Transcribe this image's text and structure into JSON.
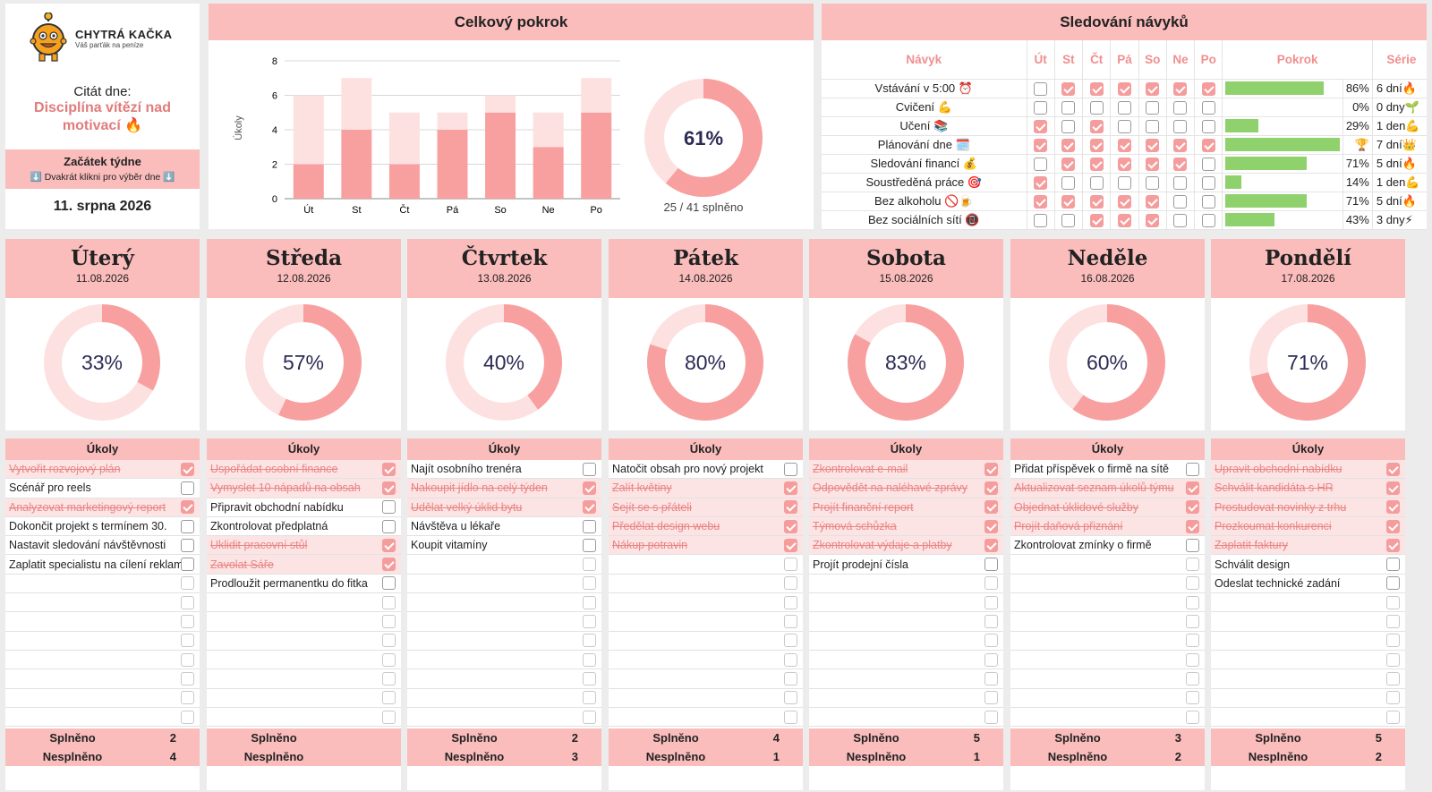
{
  "brand": {
    "name": "CHYTRÁ KAČKA",
    "tagline": "Váš parťák na peníze"
  },
  "quote": {
    "label": "Citát dne:",
    "text": "Disciplína vítězí nad motivací 🔥"
  },
  "week": {
    "title": "Začátek týdne",
    "hint": "⬇️ Dvakrát klikni pro výběr dne ⬇️",
    "date": "11. srpna 2026"
  },
  "overall": {
    "title": "Celkový pokrok",
    "percent_label": "61%",
    "percent": 61,
    "summary": "25 / 41 splněno"
  },
  "chart_data": {
    "type": "bar",
    "ylabel": "Úkoly",
    "ylim": [
      0,
      8
    ],
    "yticks": [
      "0",
      "2",
      "4",
      "6",
      "8"
    ],
    "categories": [
      "Út",
      "St",
      "Čt",
      "Pá",
      "So",
      "Ne",
      "Po"
    ],
    "series": [
      {
        "values": [
          2,
          4,
          2,
          4,
          5,
          3,
          5
        ]
      },
      {
        "values": [
          4,
          3,
          3,
          1,
          1,
          2,
          2
        ]
      }
    ],
    "colors": [
      "#f8a0a0",
      "#fde0e0"
    ]
  },
  "habits": {
    "title": "Sledování návyků",
    "headers": {
      "habit": "Návyk",
      "days": [
        "Út",
        "St",
        "Čt",
        "Pá",
        "So",
        "Ne",
        "Po"
      ],
      "progress": "Pokrok",
      "streak": "Série"
    },
    "rows": [
      {
        "name": "Vstávání v 5:00 ⏰",
        "checks": [
          0,
          1,
          1,
          1,
          1,
          1,
          1
        ],
        "progress": 0.86,
        "pct": "86%",
        "streak": "6 dní🔥"
      },
      {
        "name": "Cvičení 💪",
        "checks": [
          0,
          0,
          0,
          0,
          0,
          0,
          0
        ],
        "progress": 0,
        "pct": "0%",
        "streak": "0 dny🌱"
      },
      {
        "name": "Učení 📚",
        "checks": [
          1,
          0,
          1,
          0,
          0,
          0,
          0
        ],
        "progress": 0.29,
        "pct": "29%",
        "streak": "1 den💪"
      },
      {
        "name": "Plánování dne 🗓️",
        "checks": [
          1,
          1,
          1,
          1,
          1,
          1,
          1
        ],
        "progress": 1,
        "pct": "🏆",
        "streak": "7 dní👑"
      },
      {
        "name": "Sledování financí 💰",
        "checks": [
          0,
          1,
          1,
          1,
          1,
          1,
          0
        ],
        "progress": 0.71,
        "pct": "71%",
        "streak": "5 dní🔥"
      },
      {
        "name": "Soustředěná práce 🎯",
        "checks": [
          1,
          0,
          0,
          0,
          0,
          0,
          0
        ],
        "progress": 0.14,
        "pct": "14%",
        "streak": "1 den💪"
      },
      {
        "name": "Bez alkoholu 🚫🍺",
        "checks": [
          1,
          1,
          1,
          1,
          1,
          0,
          0
        ],
        "progress": 0.71,
        "pct": "71%",
        "streak": "5 dní🔥"
      },
      {
        "name": "Bez sociálních sítí 📵",
        "checks": [
          0,
          0,
          1,
          1,
          1,
          0,
          0
        ],
        "progress": 0.43,
        "pct": "43%",
        "streak": "3 dny⚡"
      }
    ]
  },
  "labels": {
    "tasks": "Úkoly",
    "done": "Splněno",
    "notdone": "Nesplněno"
  },
  "days": [
    {
      "name": "Úterý",
      "date": "11.08.2026",
      "pct": 33,
      "pct_label": "33%",
      "done": "2",
      "notdone": "4",
      "tasks": [
        {
          "t": "Vytvořit rozvojový plán",
          "d": 1
        },
        {
          "t": "Scénář pro reels",
          "d": 0
        },
        {
          "t": "Analyzovat marketingový report",
          "d": 1
        },
        {
          "t": "Dokončit projekt s termínem 30.",
          "d": 0
        },
        {
          "t": "Nastavit sledování návštěvnosti",
          "d": 0
        },
        {
          "t": "Zaplatit specialistu na cílení reklamy",
          "d": 0
        }
      ]
    },
    {
      "name": "Středa",
      "date": "12.08.2026",
      "pct": 57,
      "pct_label": "57%",
      "done": "",
      "notdone": "",
      "tasks": [
        {
          "t": "Uspořádat osobní finance",
          "d": 1
        },
        {
          "t": "Vymyslet 10 nápadů na obsah",
          "d": 1
        },
        {
          "t": "Připravit obchodní nabídku",
          "d": 0
        },
        {
          "t": "Zkontrolovat předplatná",
          "d": 0
        },
        {
          "t": "Uklidit pracovní stůl",
          "d": 1
        },
        {
          "t": "Zavolat Sáře",
          "d": 1
        },
        {
          "t": "Prodloužit permanentku do fitka",
          "d": 0
        }
      ]
    },
    {
      "name": "Čtvrtek",
      "date": "13.08.2026",
      "pct": 40,
      "pct_label": "40%",
      "done": "2",
      "notdone": "3",
      "tasks": [
        {
          "t": "Najít osobního trenéra",
          "d": 0
        },
        {
          "t": "Nakoupit jídlo na celý týden",
          "d": 1
        },
        {
          "t": "Udělat velký úklid bytu",
          "d": 1
        },
        {
          "t": "Návštěva u lékaře",
          "d": 0
        },
        {
          "t": "Koupit vitamíny",
          "d": 0
        }
      ]
    },
    {
      "name": "Pátek",
      "date": "14.08.2026",
      "pct": 80,
      "pct_label": "80%",
      "done": "4",
      "notdone": "1",
      "tasks": [
        {
          "t": "Natočit obsah pro nový projekt",
          "d": 0
        },
        {
          "t": "Zalít květiny",
          "d": 1
        },
        {
          "t": "Sejít se s přáteli",
          "d": 1
        },
        {
          "t": "Předělat design webu",
          "d": 1
        },
        {
          "t": "Nákup potravin",
          "d": 1
        }
      ]
    },
    {
      "name": "Sobota",
      "date": "15.08.2026",
      "pct": 83,
      "pct_label": "83%",
      "done": "5",
      "notdone": "1",
      "tasks": [
        {
          "t": "Zkontrolovat e-mail",
          "d": 1
        },
        {
          "t": "Odpovědět na naléhavé zprávy",
          "d": 1
        },
        {
          "t": "Projít finanční report",
          "d": 1
        },
        {
          "t": "Týmová schůzka",
          "d": 1
        },
        {
          "t": "Zkontrolovat výdaje a platby",
          "d": 1
        },
        {
          "t": "Projít prodejní čísla",
          "d": 0
        }
      ]
    },
    {
      "name": "Neděle",
      "date": "16.08.2026",
      "pct": 60,
      "pct_label": "60%",
      "done": "3",
      "notdone": "2",
      "tasks": [
        {
          "t": "Přidat příspěvek o firmě na sítě",
          "d": 0
        },
        {
          "t": "Aktualizovat seznam úkolů týmu",
          "d": 1
        },
        {
          "t": "Objednat úklidové služby",
          "d": 1
        },
        {
          "t": "Projít daňová přiznání",
          "d": 1
        },
        {
          "t": "Zkontrolovat zmínky o firmě",
          "d": 0
        }
      ]
    },
    {
      "name": "Pondělí",
      "date": "17.08.2026",
      "pct": 71,
      "pct_label": "71%",
      "done": "5",
      "notdone": "2",
      "tasks": [
        {
          "t": "Upravit obchodní nabídku",
          "d": 1
        },
        {
          "t": "Schválit kandidáta s HR",
          "d": 1
        },
        {
          "t": "Prostudovat novinky z trhu",
          "d": 1
        },
        {
          "t": "Prozkoumat konkurenci",
          "d": 1
        },
        {
          "t": "Zaplatit faktury",
          "d": 1
        },
        {
          "t": "Schválit design",
          "d": 0
        },
        {
          "t": "Odeslat technické zadání",
          "d": 0
        }
      ]
    }
  ]
}
